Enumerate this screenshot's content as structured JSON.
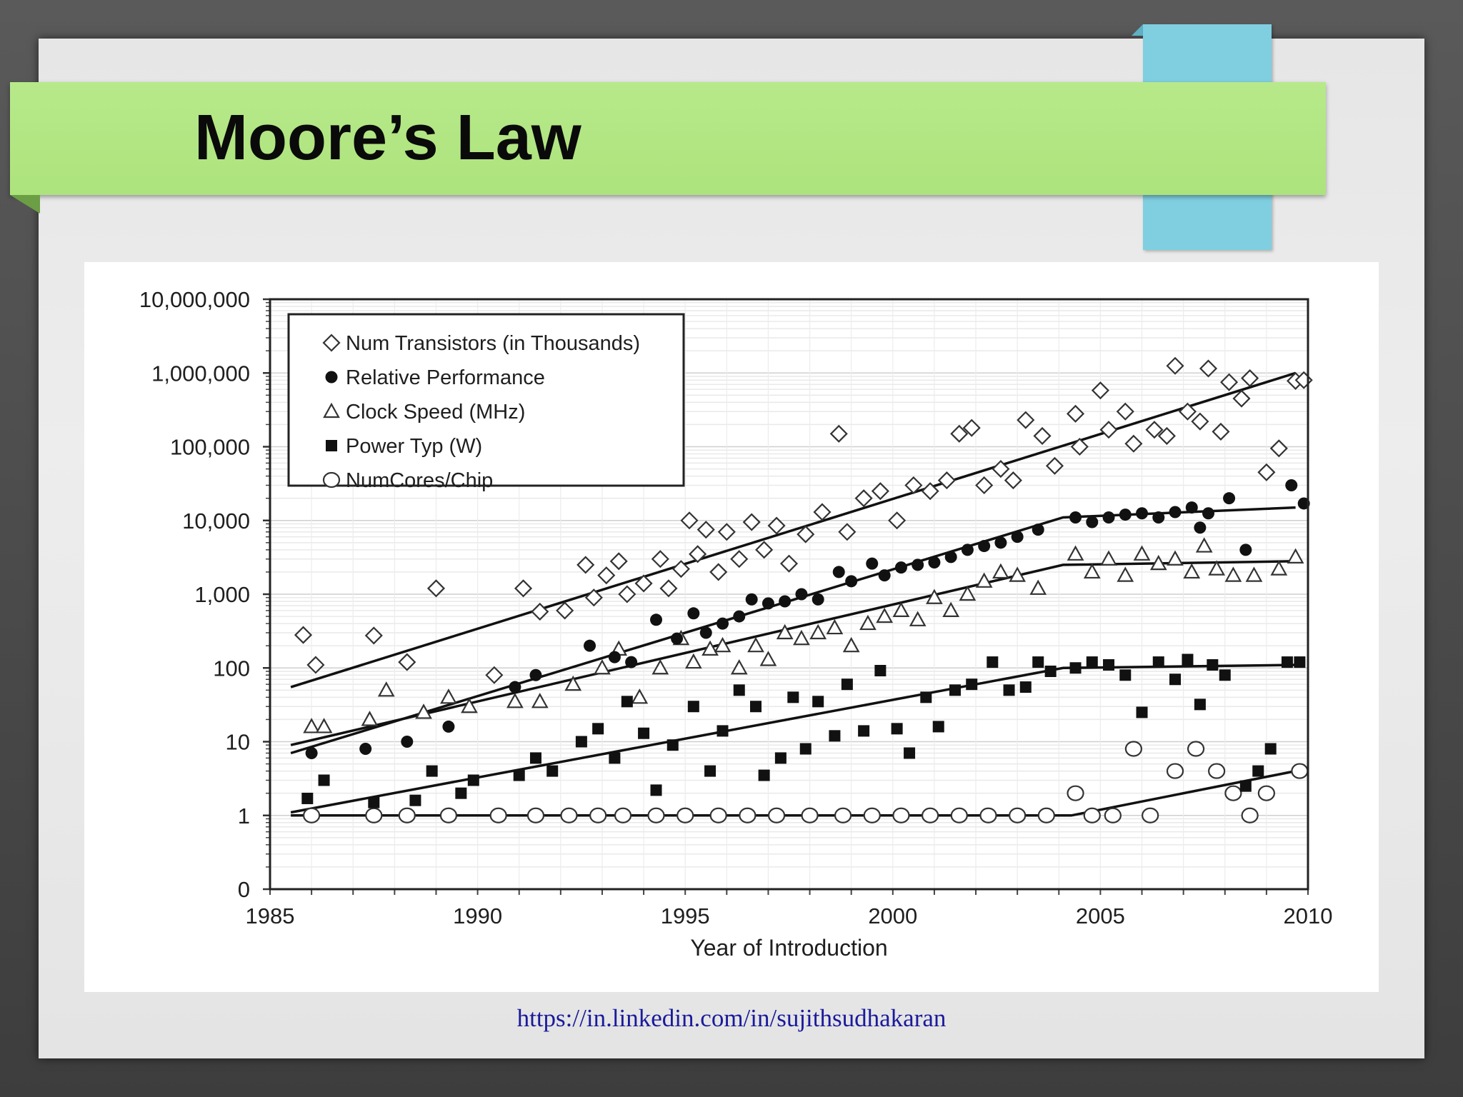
{
  "slide": {
    "title": "Moore’s Law",
    "footer_link": "https://in.linkedin.com/in/sujithsudhakaran",
    "colors": {
      "title_band": "#b0e47e",
      "accent_block": "#7fcfe0",
      "link": "#1a1a9c"
    }
  },
  "chart_data": {
    "type": "scatter",
    "title": "",
    "xlabel": "Year of Introduction",
    "ylabel": "",
    "xlim": [
      1985,
      2010
    ],
    "x_ticks": [
      "1985",
      "1990",
      "1995",
      "2000",
      "2005",
      "2010"
    ],
    "y_scale": "log",
    "y_ticks": [
      "0",
      "1",
      "10",
      "100",
      "1,000",
      "10,000",
      "100,000",
      "1,000,000",
      "10,000,000"
    ],
    "grid": true,
    "legend_position": "top-left",
    "series": [
      {
        "name": "Num Transistors (in Thousands)",
        "marker": "open-diamond",
        "points": [
          [
            1985.8,
            280
          ],
          [
            1986.1,
            110
          ],
          [
            1987.5,
            275
          ],
          [
            1988.3,
            120
          ],
          [
            1989,
            1200
          ],
          [
            1990.4,
            80
          ],
          [
            1991.1,
            1200
          ],
          [
            1991.5,
            580
          ],
          [
            1992.1,
            600
          ],
          [
            1992.6,
            2500
          ],
          [
            1992.8,
            900
          ],
          [
            1993.1,
            1800
          ],
          [
            1993.4,
            2800
          ],
          [
            1993.6,
            1000
          ],
          [
            1994,
            1400
          ],
          [
            1994.4,
            3000
          ],
          [
            1994.6,
            1200
          ],
          [
            1994.9,
            2200
          ],
          [
            1995.1,
            10000
          ],
          [
            1995.3,
            3500
          ],
          [
            1995.5,
            7500
          ],
          [
            1995.8,
            2000
          ],
          [
            1996,
            7000
          ],
          [
            1996.3,
            3000
          ],
          [
            1996.6,
            9500
          ],
          [
            1996.9,
            4000
          ],
          [
            1997.2,
            8500
          ],
          [
            1997.5,
            2600
          ],
          [
            1997.9,
            6500
          ],
          [
            1998.3,
            13000
          ],
          [
            1998.7,
            150000
          ],
          [
            1998.9,
            7000
          ],
          [
            1999.3,
            20000
          ],
          [
            1999.7,
            25000
          ],
          [
            2000.1,
            10000
          ],
          [
            2000.5,
            30000
          ],
          [
            2000.9,
            25000
          ],
          [
            2001.3,
            35000
          ],
          [
            2001.6,
            150000
          ],
          [
            2001.9,
            180000
          ],
          [
            2002.2,
            30000
          ],
          [
            2002.6,
            50000
          ],
          [
            2002.9,
            35000
          ],
          [
            2003.2,
            230000
          ],
          [
            2003.6,
            140000
          ],
          [
            2003.9,
            55000
          ],
          [
            2004.4,
            280000
          ],
          [
            2004.5,
            100000
          ],
          [
            2005,
            580000
          ],
          [
            2005.2,
            170000
          ],
          [
            2005.6,
            300000
          ],
          [
            2005.8,
            110000
          ],
          [
            2006.3,
            170000
          ],
          [
            2006.6,
            140000
          ],
          [
            2006.8,
            1250000
          ],
          [
            2007.1,
            300000
          ],
          [
            2007.4,
            220000
          ],
          [
            2007.6,
            1150000
          ],
          [
            2007.9,
            160000
          ],
          [
            2008.1,
            750000
          ],
          [
            2008.4,
            450000
          ],
          [
            2008.6,
            850000
          ],
          [
            2009,
            45000
          ],
          [
            2009.3,
            95000
          ],
          [
            2009.7,
            780000
          ],
          [
            2009.9,
            800000
          ]
        ]
      },
      {
        "name": "Relative Performance",
        "marker": "filled-circle",
        "points": [
          [
            1986,
            7
          ],
          [
            1987.3,
            8
          ],
          [
            1988.3,
            10
          ],
          [
            1989.3,
            16
          ],
          [
            1990.9,
            55
          ],
          [
            1991.4,
            80
          ],
          [
            1992.7,
            200
          ],
          [
            1993.3,
            140
          ],
          [
            1993.7,
            120
          ],
          [
            1994.3,
            450
          ],
          [
            1994.8,
            250
          ],
          [
            1995.2,
            550
          ],
          [
            1995.5,
            300
          ],
          [
            1995.9,
            400
          ],
          [
            1996.3,
            500
          ],
          [
            1996.6,
            850
          ],
          [
            1997,
            750
          ],
          [
            1997.4,
            800
          ],
          [
            1997.8,
            1000
          ],
          [
            1998.2,
            850
          ],
          [
            1998.7,
            2000
          ],
          [
            1999,
            1500
          ],
          [
            1999.5,
            2600
          ],
          [
            1999.8,
            1800
          ],
          [
            2000.2,
            2300
          ],
          [
            2000.6,
            2500
          ],
          [
            2001,
            2700
          ],
          [
            2001.4,
            3200
          ],
          [
            2001.8,
            4000
          ],
          [
            2002.2,
            4500
          ],
          [
            2002.6,
            5000
          ],
          [
            2003,
            6000
          ],
          [
            2003.5,
            7500
          ],
          [
            2004.4,
            11000
          ],
          [
            2004.8,
            9500
          ],
          [
            2005.2,
            11000
          ],
          [
            2005.6,
            12000
          ],
          [
            2006,
            12500
          ],
          [
            2006.4,
            11000
          ],
          [
            2006.8,
            13000
          ],
          [
            2007.2,
            15000
          ],
          [
            2007.4,
            8000
          ],
          [
            2007.6,
            12500
          ],
          [
            2008.1,
            20000
          ],
          [
            2008.5,
            4000
          ],
          [
            2009.6,
            30000
          ],
          [
            2009.9,
            17000
          ]
        ]
      },
      {
        "name": "Clock Speed (MHz)",
        "marker": "open-triangle",
        "points": [
          [
            1986,
            16
          ],
          [
            1986.3,
            16
          ],
          [
            1987.4,
            20
          ],
          [
            1987.8,
            50
          ],
          [
            1988.7,
            25
          ],
          [
            1989.3,
            40
          ],
          [
            1989.8,
            30
          ],
          [
            1990.9,
            35
          ],
          [
            1991.5,
            35
          ],
          [
            1992.3,
            60
          ],
          [
            1993,
            100
          ],
          [
            1993.4,
            180
          ],
          [
            1993.9,
            40
          ],
          [
            1994.4,
            100
          ],
          [
            1994.9,
            250
          ],
          [
            1995.2,
            120
          ],
          [
            1995.6,
            180
          ],
          [
            1995.9,
            200
          ],
          [
            1996.3,
            100
          ],
          [
            1996.7,
            200
          ],
          [
            1997,
            130
          ],
          [
            1997.4,
            300
          ],
          [
            1997.8,
            250
          ],
          [
            1998.2,
            300
          ],
          [
            1998.6,
            350
          ],
          [
            1999,
            200
          ],
          [
            1999.4,
            400
          ],
          [
            1999.8,
            500
          ],
          [
            2000.2,
            600
          ],
          [
            2000.6,
            450
          ],
          [
            2001,
            900
          ],
          [
            2001.4,
            600
          ],
          [
            2001.8,
            1000
          ],
          [
            2002.2,
            1500
          ],
          [
            2002.6,
            2000
          ],
          [
            2003,
            1800
          ],
          [
            2003.5,
            1200
          ],
          [
            2004.4,
            3500
          ],
          [
            2004.8,
            2000
          ],
          [
            2005.2,
            3000
          ],
          [
            2005.6,
            1800
          ],
          [
            2006,
            3500
          ],
          [
            2006.4,
            2600
          ],
          [
            2006.8,
            3000
          ],
          [
            2007.2,
            2000
          ],
          [
            2007.5,
            4500
          ],
          [
            2007.8,
            2200
          ],
          [
            2008.2,
            1800
          ],
          [
            2008.7,
            1800
          ],
          [
            2009.3,
            2200
          ],
          [
            2009.7,
            3200
          ]
        ]
      },
      {
        "name": "Power Typ (W)",
        "marker": "filled-square",
        "points": [
          [
            1985.9,
            1.7
          ],
          [
            1986.3,
            3
          ],
          [
            1987.5,
            1.5
          ],
          [
            1988.5,
            1.6
          ],
          [
            1988.9,
            4
          ],
          [
            1989.6,
            2
          ],
          [
            1989.9,
            3
          ],
          [
            1991,
            3.5
          ],
          [
            1991.4,
            6
          ],
          [
            1991.8,
            4
          ],
          [
            1992.5,
            10
          ],
          [
            1992.9,
            15
          ],
          [
            1993.3,
            6
          ],
          [
            1993.6,
            35
          ],
          [
            1994,
            13
          ],
          [
            1994.3,
            2.2
          ],
          [
            1994.7,
            9
          ],
          [
            1995.2,
            30
          ],
          [
            1995.6,
            4
          ],
          [
            1995.9,
            14
          ],
          [
            1996.3,
            50
          ],
          [
            1996.7,
            30
          ],
          [
            1996.9,
            3.5
          ],
          [
            1997.3,
            6
          ],
          [
            1997.6,
            40
          ],
          [
            1997.9,
            8
          ],
          [
            1998.2,
            35
          ],
          [
            1998.6,
            12
          ],
          [
            1998.9,
            60
          ],
          [
            1999.3,
            14
          ],
          [
            1999.7,
            92
          ],
          [
            2000.1,
            15
          ],
          [
            2000.4,
            7
          ],
          [
            2000.8,
            40
          ],
          [
            2001.1,
            16
          ],
          [
            2001.5,
            50
          ],
          [
            2001.9,
            60
          ],
          [
            2002.4,
            120
          ],
          [
            2002.8,
            50
          ],
          [
            2003.2,
            55
          ],
          [
            2003.5,
            120
          ],
          [
            2003.8,
            90
          ],
          [
            2004.4,
            100
          ],
          [
            2004.8,
            120
          ],
          [
            2005.2,
            110
          ],
          [
            2005.6,
            80
          ],
          [
            2006,
            25
          ],
          [
            2006.4,
            120
          ],
          [
            2006.8,
            70
          ],
          [
            2007.1,
            130
          ],
          [
            2007.4,
            32
          ],
          [
            2007.7,
            110
          ],
          [
            2008,
            80
          ],
          [
            2008.5,
            2.5
          ],
          [
            2008.8,
            4
          ],
          [
            2009.1,
            8
          ],
          [
            2009.5,
            120
          ],
          [
            2009.8,
            120
          ]
        ]
      },
      {
        "name": "NumCores/Chip",
        "marker": "open-circle",
        "points": [
          [
            1986,
            1
          ],
          [
            1987.5,
            1
          ],
          [
            1988.3,
            1
          ],
          [
            1989.3,
            1
          ],
          [
            1990.5,
            1
          ],
          [
            1991.4,
            1
          ],
          [
            1992.2,
            1
          ],
          [
            1992.9,
            1
          ],
          [
            1993.5,
            1
          ],
          [
            1994.3,
            1
          ],
          [
            1995,
            1
          ],
          [
            1995.8,
            1
          ],
          [
            1996.5,
            1
          ],
          [
            1997.2,
            1
          ],
          [
            1998,
            1
          ],
          [
            1998.8,
            1
          ],
          [
            1999.5,
            1
          ],
          [
            2000.2,
            1
          ],
          [
            2000.9,
            1
          ],
          [
            2001.6,
            1
          ],
          [
            2002.3,
            1
          ],
          [
            2003,
            1
          ],
          [
            2003.7,
            1
          ],
          [
            2004.4,
            2
          ],
          [
            2004.8,
            1
          ],
          [
            2005.3,
            1
          ],
          [
            2005.8,
            8
          ],
          [
            2006.2,
            1
          ],
          [
            2006.8,
            4
          ],
          [
            2007.3,
            8
          ],
          [
            2007.8,
            4
          ],
          [
            2008.2,
            2
          ],
          [
            2008.6,
            1
          ],
          [
            2009,
            2
          ],
          [
            2009.8,
            4
          ]
        ]
      }
    ],
    "trend_lines": [
      {
        "series": "Num Transistors (in Thousands)",
        "points": [
          [
            1985.5,
            55
          ],
          [
            2009.7,
            1000000
          ]
        ]
      },
      {
        "series": "Relative Performance",
        "points": [
          [
            1985.5,
            7
          ],
          [
            2004.1,
            11000
          ],
          [
            2009.7,
            15000
          ]
        ]
      },
      {
        "series": "Clock Speed (MHz)",
        "points": [
          [
            1985.5,
            9
          ],
          [
            2004.1,
            2500
          ],
          [
            2009.7,
            2800
          ]
        ]
      },
      {
        "series": "Power Typ (W)",
        "points": [
          [
            1985.5,
            1.1
          ],
          [
            2004.1,
            100
          ],
          [
            2009.7,
            110
          ]
        ]
      },
      {
        "series": "NumCores/Chip",
        "points": [
          [
            1985.5,
            1
          ],
          [
            2004.3,
            1
          ],
          [
            2009.7,
            4
          ]
        ]
      }
    ]
  }
}
